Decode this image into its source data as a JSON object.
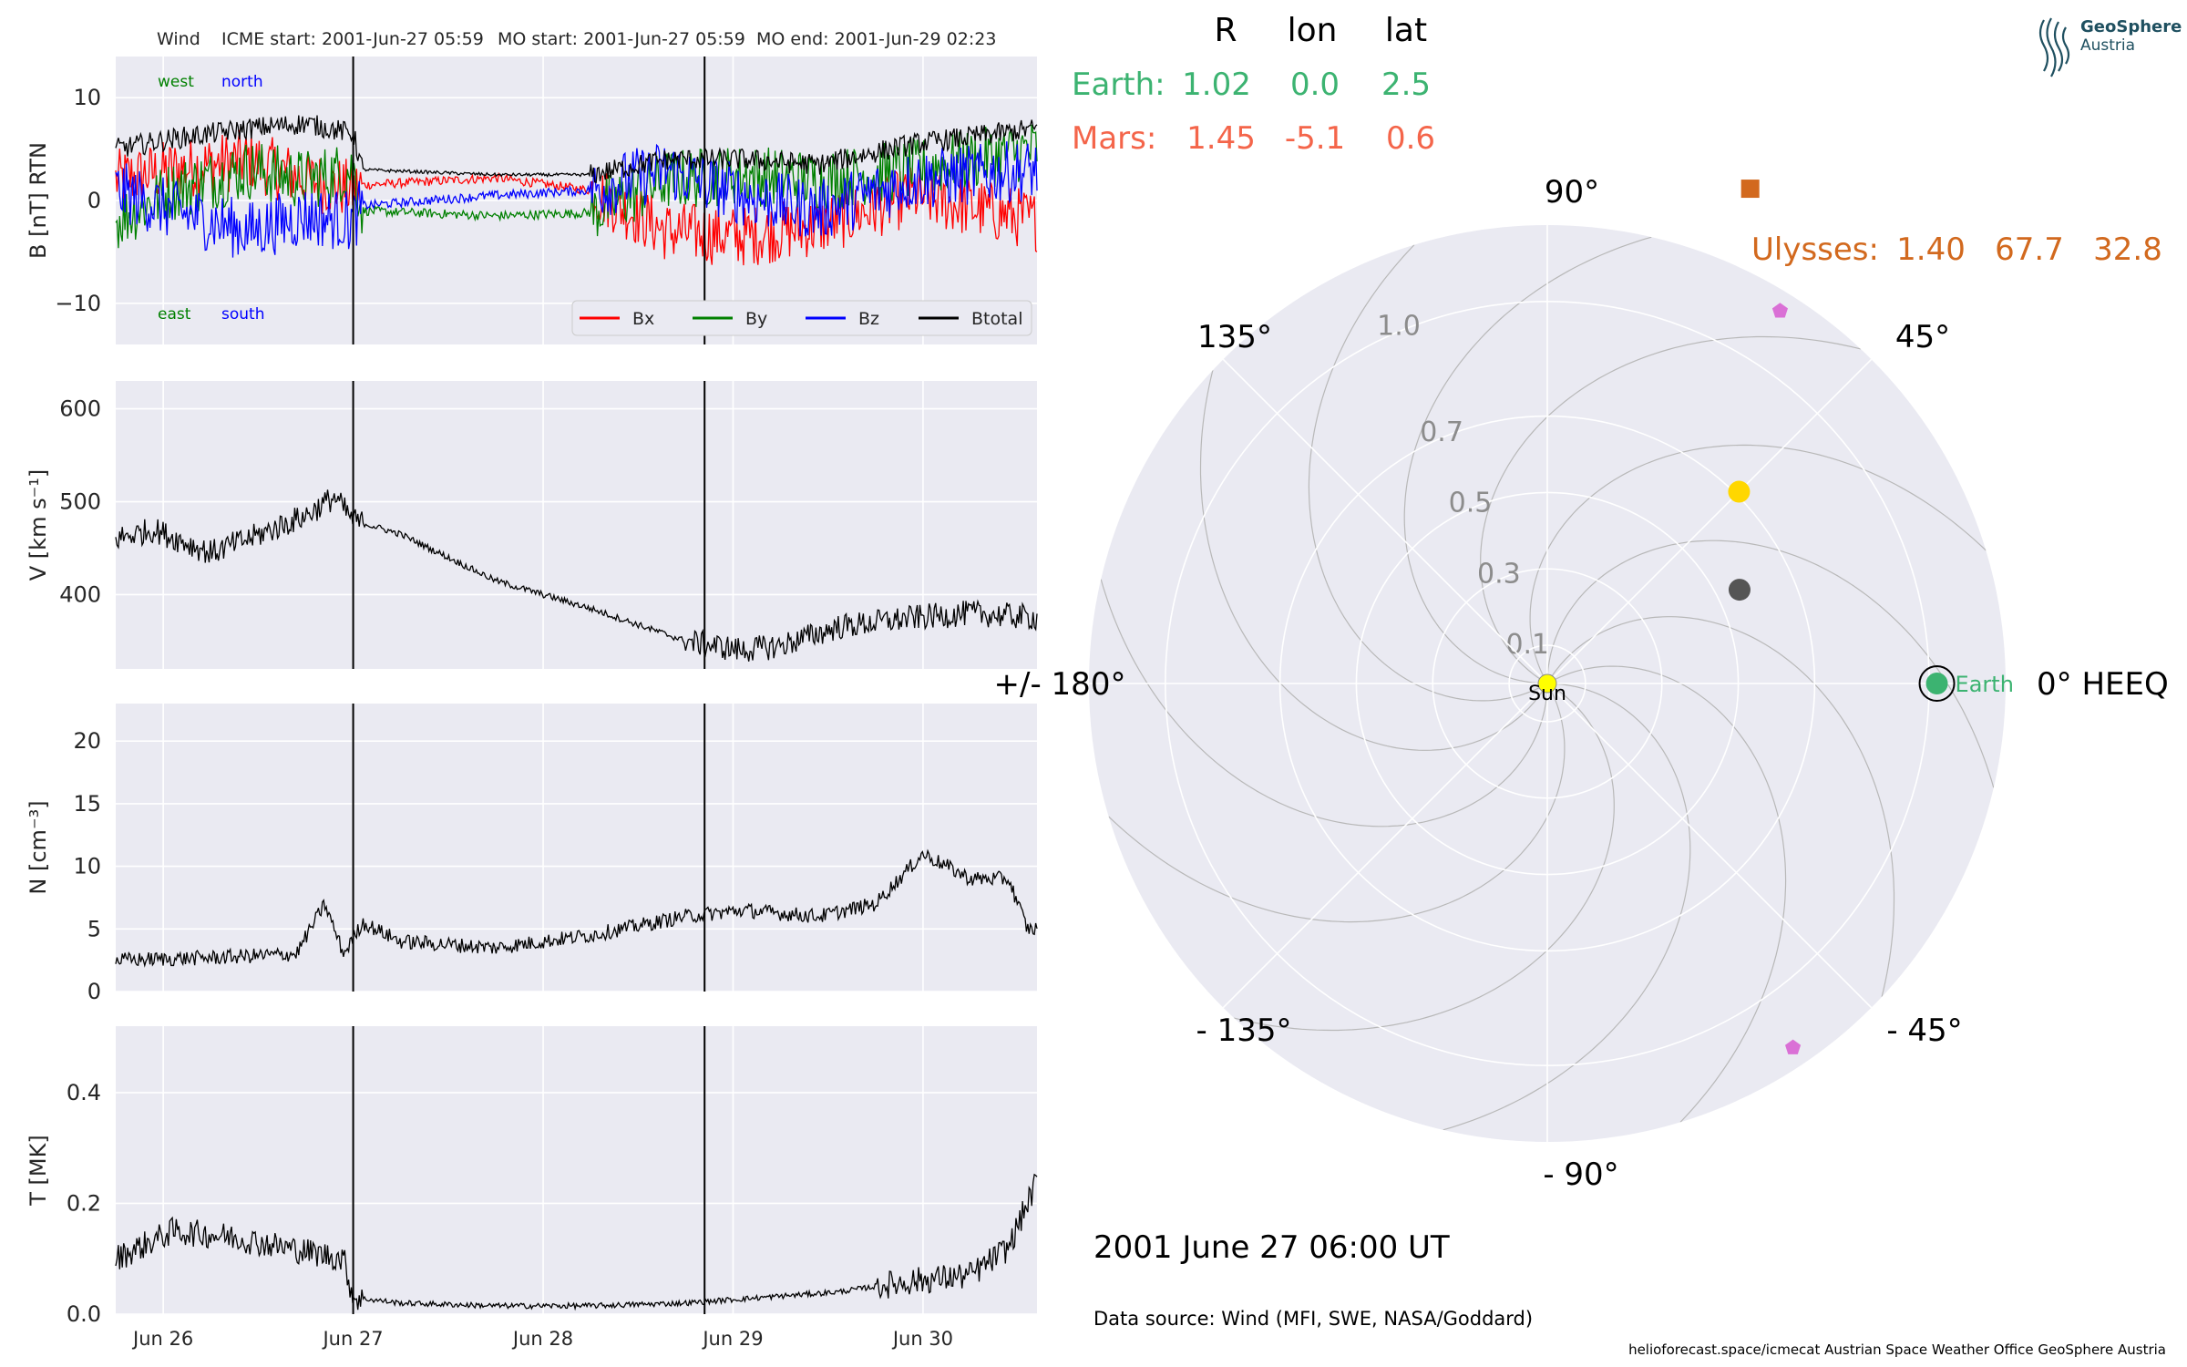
{
  "header": {
    "spacecraft": "Wind",
    "icme_start": "ICME start: 2001-Jun-27 05:59",
    "mo_start": "MO start: 2001-Jun-27 05:59",
    "mo_end": "MO end: 2001-Jun-29 02:23"
  },
  "logo": {
    "name": "GeoSphere",
    "sub": "Austria"
  },
  "positions_table": {
    "columns": [
      "R",
      "lon",
      "lat"
    ],
    "rows": [
      {
        "name": "Earth:",
        "R": "1.02",
        "lon": "0.0",
        "lat": "2.5",
        "color": "#3cb371"
      },
      {
        "name": "Mars:",
        "R": "1.45",
        "lon": "-5.1",
        "lat": "0.6",
        "color": "#f4654a"
      }
    ],
    "ulysses": {
      "name": "Ulysses:",
      "R": "1.40",
      "lon": "67.7",
      "lat": "32.8",
      "color": "#d2691e"
    }
  },
  "date_label": "2001 June 27  06:00 UT",
  "data_source": "Data source: Wind (MFI, SWE, NASA/Goddard)",
  "footer": "helioforecast.space/icmecat   Austrian Space Weather Office   GeoSphere Austria",
  "chart_data": [
    {
      "type": "line",
      "panel": "magnetic field",
      "ylabel": "B [nT] RTN",
      "ylim": [
        -14,
        14
      ],
      "yticks": [
        -10,
        0,
        10
      ],
      "ytick_labels": [
        "−10",
        "0",
        "10"
      ],
      "xlim_days": [
        0,
        4.85
      ],
      "x_tick_labels": [
        "Jun 26",
        "Jun 27",
        "Jun 28",
        "Jun 29",
        "Jun 30"
      ],
      "annotations": {
        "top_left": [
          "west",
          "north"
        ],
        "bottom_left": [
          "east",
          "south"
        ]
      },
      "legend": "bottom-right",
      "series": [
        {
          "name": "Bx",
          "color": "#ff0000",
          "x_days": [
            0,
            0.3,
            0.7,
            1.0,
            1.25,
            1.3,
            2.0,
            2.5,
            2.9,
            3.3,
            3.7,
            4.2,
            4.85
          ],
          "values": [
            2,
            3,
            4,
            2,
            1,
            1.5,
            2.2,
            1,
            -3,
            -3.5,
            -2.5,
            0.5,
            -2
          ]
        },
        {
          "name": "By",
          "color": "#008000",
          "x_days": [
            0,
            0.3,
            0.7,
            1.0,
            1.25,
            1.3,
            2.0,
            2.5,
            2.9,
            3.3,
            3.7,
            4.2,
            4.85
          ],
          "values": [
            -2,
            1,
            3,
            2,
            3,
            -1,
            -1.5,
            -1.2,
            2,
            2.5,
            2,
            3,
            5
          ]
        },
        {
          "name": "Bz",
          "color": "#0000ff",
          "x_days": [
            0,
            0.3,
            0.7,
            1.0,
            1.25,
            1.3,
            2.0,
            2.5,
            2.9,
            3.3,
            3.7,
            4.2,
            4.85
          ],
          "values": [
            1,
            -1,
            -3,
            -1.5,
            -2,
            -0.5,
            0.5,
            1,
            3,
            0.5,
            -1,
            2,
            3
          ]
        },
        {
          "name": "Btotal",
          "color": "#000000",
          "x_days": [
            0,
            0.3,
            0.7,
            1.0,
            1.25,
            1.3,
            2.0,
            2.5,
            2.9,
            3.3,
            3.7,
            4.2,
            4.85
          ],
          "values": [
            5,
            6,
            7,
            7.5,
            6.5,
            3,
            2.5,
            2.5,
            4,
            4,
            3.5,
            5.5,
            7
          ]
        }
      ]
    },
    {
      "type": "line",
      "panel": "speed",
      "ylabel": "V [km s⁻¹]",
      "ylim": [
        320,
        630
      ],
      "yticks": [
        400,
        500,
        600
      ],
      "ytick_labels": [
        "400",
        "500",
        "600"
      ],
      "xlim_days": [
        0,
        4.85
      ],
      "series": [
        {
          "name": "",
          "color": "#000000",
          "x_days": [
            0,
            0.2,
            0.5,
            0.7,
            1.0,
            1.15,
            1.25,
            1.5,
            2.0,
            2.5,
            3.0,
            3.3,
            3.5,
            3.8,
            4.2,
            4.5,
            4.85
          ],
          "values": [
            460,
            470,
            445,
            460,
            485,
            505,
            480,
            465,
            415,
            385,
            350,
            340,
            345,
            365,
            375,
            380,
            375
          ]
        }
      ]
    },
    {
      "type": "line",
      "panel": "density",
      "ylabel": "N [cm⁻³]",
      "ylim": [
        0,
        23
      ],
      "yticks": [
        0,
        5,
        10,
        15,
        20
      ],
      "ytick_labels": [
        "0",
        "5",
        "10",
        "15",
        "20"
      ],
      "xlim_days": [
        0,
        4.85
      ],
      "series": [
        {
          "name": "",
          "color": "#000000",
          "x_days": [
            0,
            0.5,
            0.95,
            1.1,
            1.2,
            1.3,
            1.5,
            2.0,
            2.5,
            3.0,
            3.3,
            3.7,
            4.0,
            4.25,
            4.5,
            4.7,
            4.8,
            4.85
          ],
          "values": [
            2.5,
            2.7,
            3,
            7,
            3,
            5.5,
            4,
            3.5,
            4.5,
            6,
            6.5,
            6,
            7,
            11,
            9,
            9,
            5,
            5
          ]
        }
      ]
    },
    {
      "type": "line",
      "panel": "temperature",
      "ylabel": "T [MK]",
      "ylim": [
        0,
        0.52
      ],
      "yticks": [
        0.0,
        0.2,
        0.4
      ],
      "ytick_labels": [
        "0.0",
        "0.2",
        "0.4"
      ],
      "xlim_days": [
        0,
        4.85
      ],
      "series": [
        {
          "name": "",
          "color": "#000000",
          "x_days": [
            0,
            0.3,
            0.6,
            0.9,
            1.2,
            1.25,
            1.5,
            2.0,
            2.5,
            3.0,
            3.4,
            3.8,
            4.2,
            4.5,
            4.7,
            4.85
          ],
          "values": [
            0.1,
            0.15,
            0.14,
            0.12,
            0.1,
            0.03,
            0.02,
            0.015,
            0.015,
            0.02,
            0.03,
            0.04,
            0.06,
            0.07,
            0.12,
            0.24
          ]
        }
      ]
    },
    {
      "type": "scatter",
      "panel": "polar position plot (HEEQ)",
      "r_ticks": [
        0.1,
        0.3,
        0.5,
        0.7,
        1.0
      ],
      "r_tick_labels": [
        "0.1",
        "0.3",
        "0.5",
        "0.7",
        "1.0"
      ],
      "angle_ticks": [
        0,
        45,
        90,
        135,
        180,
        -135,
        -90,
        -45
      ],
      "angle_tick_labels": [
        "0° HEEQ",
        "45°",
        "90°",
        "135°",
        "+/- 180°",
        "- 135°",
        "- 90°",
        "- 45°"
      ],
      "r_max": 1.2,
      "vertical_event_lines_days": [
        1.25,
        3.1
      ],
      "points": [
        {
          "name": "Sun",
          "lon": 0,
          "r": 0,
          "color": "#ffff00",
          "marker": "circle"
        },
        {
          "name": "Earth",
          "lon": 0.0,
          "r": 1.02,
          "color": "#3cb371",
          "marker": "circle"
        },
        {
          "name": "",
          "lon": 45,
          "r": 0.71,
          "color": "#ffd700",
          "marker": "circle"
        },
        {
          "name": "",
          "lon": 26,
          "r": 0.56,
          "color": "#555555",
          "marker": "circle"
        },
        {
          "name": "",
          "lon": 58,
          "r": 1.15,
          "color": "#da70d6",
          "marker": "pentagon"
        },
        {
          "name": "",
          "lon": -56,
          "r": 1.15,
          "color": "#da70d6",
          "marker": "pentagon"
        },
        {
          "name": "",
          "lon": 67.7,
          "r": 1.4,
          "color": "#d2691e",
          "marker": "square"
        }
      ]
    }
  ]
}
